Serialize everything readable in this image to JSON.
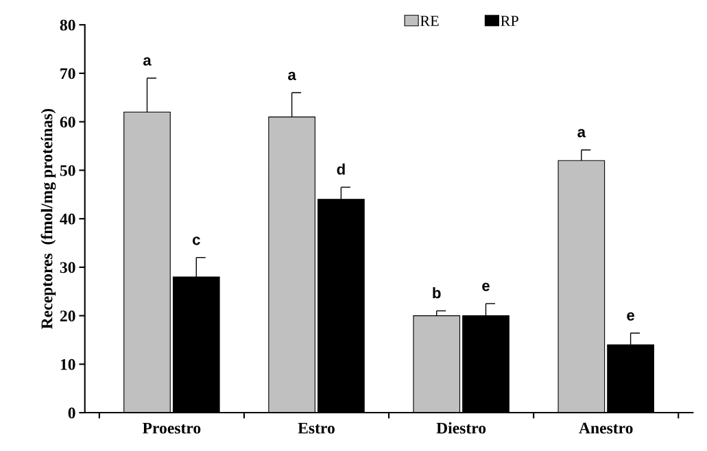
{
  "chart_data": {
    "type": "bar",
    "ylabel": "Receptores  (fmol/mg proteínas)",
    "categories": [
      "Proestro",
      "Estro",
      "Diestro",
      "Anestro"
    ],
    "series": [
      {
        "name": "RE",
        "color": "#c0c0c0",
        "values": [
          62,
          61,
          20,
          52
        ],
        "errors": [
          [
            62,
            69
          ],
          [
            61,
            66
          ],
          [
            20,
            21
          ],
          [
            52,
            54.2
          ]
        ],
        "value_labels": [
          "a",
          "a",
          "b",
          "a"
        ]
      },
      {
        "name": "RP",
        "color": "#000000",
        "values": [
          28,
          44,
          20,
          14
        ],
        "errors": [
          [
            28,
            32
          ],
          [
            44,
            46.5
          ],
          [
            20,
            22.5
          ],
          [
            14,
            16.4
          ]
        ],
        "value_labels": [
          "c",
          "d",
          "e",
          "e"
        ]
      }
    ],
    "ylim": [
      0,
      80
    ],
    "yticks": [
      0,
      10,
      20,
      30,
      40,
      50,
      60,
      70,
      80
    ],
    "grid": false,
    "legend": "top"
  }
}
